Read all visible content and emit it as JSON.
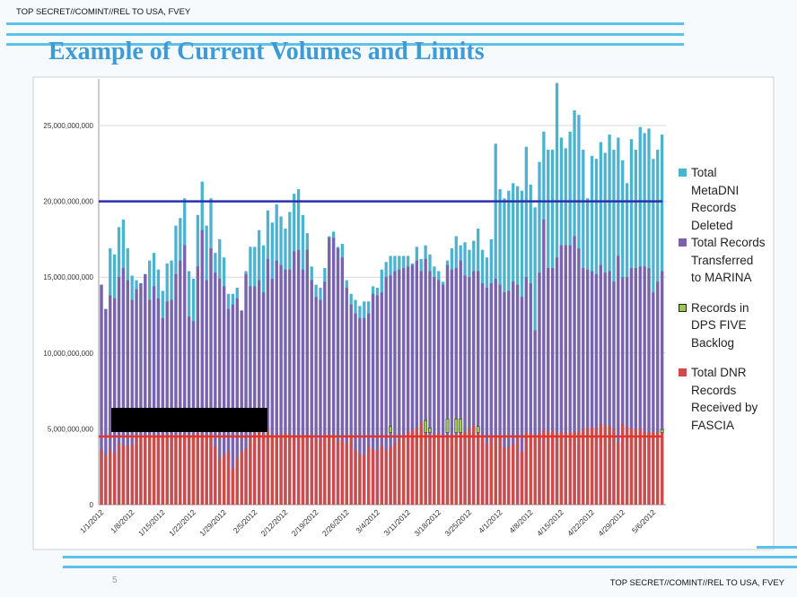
{
  "header": {
    "classification": "TOP SECRET//COMINT//REL TO USA, FVEY",
    "title": "Example of  Current Volumes and Limits"
  },
  "footer": {
    "classification": "TOP SECRET//COMINT//REL TO USA, FVEY",
    "page_number": "5"
  },
  "colors": {
    "deleted": "#4bb3cf",
    "transferred": "#7c62ad",
    "backlog": "#9bc94f",
    "received": "#cd4b48",
    "limit_high": "#2a2fb0",
    "limit_low": "#e8332c",
    "title": "#3d9bd6"
  },
  "chart_data": {
    "type": "bar",
    "units": "records",
    "value_scale": "billions",
    "start_date": "1/1/2012",
    "num_days": 129,
    "ylim": [
      0,
      28000000000
    ],
    "y_ticks": [
      "0",
      "5,000,000,000",
      "10,000,000,000",
      "15,000,000,000",
      "20,000,000,000",
      "25,000,000,000"
    ],
    "y_tick_values": [
      0,
      5,
      10,
      15,
      20,
      25
    ],
    "x_tick_labels": [
      "1/1/2012",
      "1/8/2012",
      "1/15/2012",
      "1/22/2012",
      "1/29/2012",
      "2/5/2012",
      "2/12/2012",
      "2/19/2012",
      "2/26/2012",
      "3/4/2012",
      "3/11/2012",
      "3/18/2012",
      "3/25/2012",
      "4/1/2012",
      "4/8/2012",
      "4/15/2012",
      "4/22/2012",
      "4/29/2012",
      "5/6/2012"
    ],
    "grid": true,
    "legend_position": "right",
    "reference_lines": [
      {
        "name": "upper limit",
        "value": 20
      },
      {
        "name": "lower limit",
        "value": 4.5
      }
    ],
    "series": [
      {
        "name": "Total MetaDNI Records Deleted",
        "key": "deleted",
        "values": [
          14.5,
          12.9,
          16.9,
          16.5,
          18.3,
          18.8,
          16.9,
          15.1,
          14.8,
          14.6,
          15.2,
          16.1,
          16.6,
          15.5,
          14.1,
          15.9,
          16.1,
          18.4,
          18.9,
          20.2,
          15.4,
          14.9,
          19.1,
          21.3,
          18.4,
          20.2,
          16.6,
          17.5,
          16.3,
          13.9,
          13.9,
          14.3,
          12.8,
          15.4,
          17.0,
          17.0,
          18.1,
          17.1,
          19.4,
          18.6,
          19.8,
          19.0,
          18.2,
          19.3,
          20.5,
          20.8,
          19.1,
          17.9,
          15.7,
          14.5,
          14.3,
          15.6,
          17.7,
          18.0,
          17.0,
          17.2,
          14.8,
          13.9,
          13.5,
          13.1,
          13.4,
          13.4,
          14.4,
          14.3,
          15.5,
          16.0,
          16.4,
          16.4,
          16.4,
          16.4,
          16.4,
          15.9,
          17.0,
          16.2,
          17.1,
          16.5,
          15.7,
          15.4,
          14.7,
          16.1,
          16.9,
          17.7,
          17.1,
          17.3,
          16.8,
          17.4,
          18.2,
          16.8,
          16.3,
          17.5,
          23.8,
          20.8,
          20.2,
          20.7,
          21.2,
          21.0,
          20.7,
          23.6,
          21.1,
          19.6,
          22.6,
          24.6,
          23.4,
          23.4,
          27.8,
          24.2,
          23.5,
          24.6,
          26.0,
          25.7,
          23.4,
          20.2,
          23.0,
          22.8,
          23.9,
          23.2,
          24.4,
          23.4,
          24.2,
          22.7,
          21.2,
          24.1,
          23.4,
          24.9,
          24.5,
          24.8,
          22.8,
          23.4,
          24.4
        ]
      },
      {
        "name": "Total Records Transferred to MARINA",
        "key": "transferred",
        "values": [
          14.5,
          12.9,
          13.8,
          13.6,
          15.0,
          15.6,
          14.8,
          13.5,
          14.2,
          14.6,
          15.2,
          13.5,
          14.4,
          13.6,
          12.3,
          13.4,
          13.5,
          15.2,
          16.1,
          17.1,
          12.4,
          12.1,
          15.7,
          18.1,
          14.8,
          16.9,
          15.3,
          14.9,
          14.4,
          12.9,
          13.2,
          13.6,
          12.8,
          15.2,
          14.4,
          14.4,
          14.8,
          14.0,
          16.2,
          14.9,
          16.1,
          15.8,
          15.5,
          15.5,
          16.7,
          16.8,
          15.5,
          16.8,
          14.8,
          13.7,
          13.5,
          14.7,
          17.6,
          17.6,
          16.9,
          16.3,
          14.3,
          13.2,
          12.6,
          12.3,
          12.3,
          12.6,
          13.9,
          13.8,
          14.0,
          15.0,
          15.1,
          15.4,
          15.5,
          15.6,
          15.7,
          15.8,
          16.1,
          15.4,
          16.2,
          15.4,
          15.0,
          14.8,
          14.5,
          15.8,
          15.5,
          15.6,
          16.1,
          15.1,
          15.0,
          15.4,
          15.4,
          14.6,
          14.3,
          14.6,
          14.9,
          14.5,
          14.0,
          14.1,
          14.7,
          14.5,
          13.7,
          15.0,
          14.6,
          11.5,
          15.3,
          18.8,
          15.6,
          15.6,
          16.3,
          17.1,
          17.1,
          17.1,
          17.7,
          16.9,
          15.6,
          15.5,
          15.4,
          15.2,
          15.8,
          15.3,
          15.4,
          14.7,
          16.4,
          15.0,
          15.0,
          15.6,
          15.6,
          15.7,
          15.7,
          15.6,
          14.0,
          14.7,
          15.4
        ]
      },
      {
        "name": "Records in DPS FIVE Backlog",
        "key": "backlog",
        "points": [
          {
            "day_index": 66,
            "value": 0.4
          },
          {
            "day_index": 74,
            "value": 0.8
          },
          {
            "day_index": 75,
            "value": 0.3
          },
          {
            "day_index": 79,
            "value": 0.9
          },
          {
            "day_index": 81,
            "value": 0.9
          },
          {
            "day_index": 82,
            "value": 0.9
          },
          {
            "day_index": 86,
            "value": 0.4
          },
          {
            "day_index": 128,
            "value": 0.2
          }
        ]
      },
      {
        "name": "Total DNR Records Received by FASCIA",
        "key": "received",
        "values": [
          3.6,
          3.2,
          3.6,
          3.4,
          4.1,
          3.9,
          3.9,
          3.9,
          4.4,
          4.4,
          4.5,
          4.6,
          4.5,
          4.6,
          4.6,
          4.6,
          4.6,
          4.5,
          4.6,
          4.6,
          4.6,
          4.6,
          4.7,
          4.6,
          4.6,
          4.5,
          3.8,
          3.0,
          3.3,
          3.5,
          2.4,
          3.1,
          3.5,
          3.7,
          4.3,
          4.7,
          4.8,
          4.6,
          4.9,
          4.6,
          4.6,
          4.6,
          4.7,
          4.6,
          4.5,
          4.5,
          4.5,
          4.6,
          4.5,
          4.3,
          4.3,
          4.6,
          4.6,
          4.5,
          4.2,
          4.3,
          4.0,
          4.4,
          3.6,
          3.3,
          3.3,
          3.8,
          3.6,
          3.6,
          3.9,
          3.6,
          3.8,
          4.1,
          4.3,
          4.5,
          4.8,
          4.9,
          5.0,
          5.4,
          4.7,
          4.5,
          4.6,
          4.7,
          4.5,
          4.6,
          4.4,
          4.6,
          4.7,
          4.8,
          5.0,
          5.2,
          4.7,
          4.4,
          4.0,
          4.4,
          4.5,
          4.5,
          3.8,
          3.8,
          4.0,
          4.4,
          3.5,
          4.8,
          4.7,
          4.6,
          4.7,
          4.9,
          4.8,
          4.9,
          4.7,
          4.8,
          4.7,
          4.8,
          4.8,
          4.8,
          5.0,
          5.0,
          5.1,
          5.0,
          5.3,
          5.2,
          5.2,
          5.0,
          4.1,
          5.3,
          5.1,
          5.0,
          5.0,
          5.0,
          4.8,
          4.8,
          4.8,
          4.8,
          4.8
        ]
      }
    ],
    "legend": [
      {
        "label": "Total MetaDNI Records Deleted",
        "lines": [
          "Total",
          "MetaDNI",
          "Records",
          "Deleted"
        ],
        "key": "deleted"
      },
      {
        "label": "Total Records Transferred to MARINA",
        "lines": [
          "Total Records",
          "Transferred",
          "to MARINA"
        ],
        "key": "transferred"
      },
      {
        "label": "Records in DPS FIVE Backlog",
        "lines": [
          "Records in",
          "DPS FIVE",
          "Backlog"
        ],
        "key": "backlog"
      },
      {
        "label": "Total DNR Records Received by FASCIA",
        "lines": [
          "Total DNR",
          "Records",
          "Received by",
          "FASCIA"
        ],
        "key": "received"
      }
    ]
  }
}
